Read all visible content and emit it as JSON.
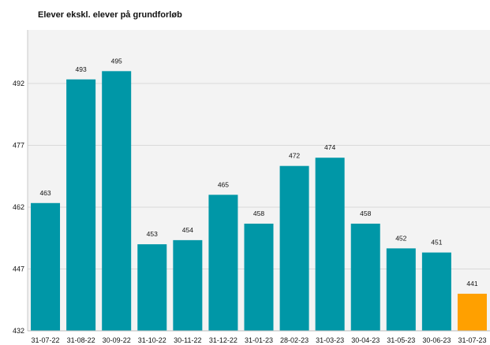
{
  "chart_data": {
    "type": "bar",
    "title": "Elever ekskl. elever på grundforløb",
    "xlabel": "",
    "ylabel": "",
    "categories": [
      "31-07-22",
      "31-08-22",
      "30-09-22",
      "31-10-22",
      "30-11-22",
      "31-12-22",
      "31-01-23",
      "28-02-23",
      "31-03-23",
      "30-04-23",
      "31-05-23",
      "30-06-23",
      "31-07-23"
    ],
    "values": [
      463,
      493,
      495,
      453,
      454,
      465,
      458,
      472,
      474,
      458,
      452,
      451,
      441
    ],
    "ylim": [
      432,
      505
    ],
    "yticks": [
      432,
      447,
      462,
      477,
      492
    ],
    "grid": true,
    "colors": {
      "bar": "#0097a7",
      "highlight": "#ffa000",
      "plot_background": "#f3f3f3",
      "gridline": "#d9d9d9"
    },
    "highlight_index": 12
  }
}
